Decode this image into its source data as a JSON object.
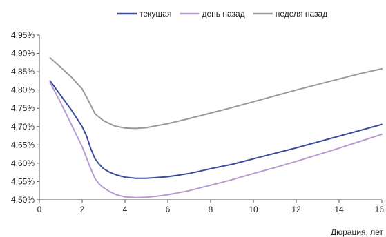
{
  "chart_data": {
    "type": "line",
    "xlabel": "Дюрация, лет",
    "ylabel": "",
    "xlim": [
      0,
      16
    ],
    "ylim": [
      4.5,
      4.95
    ],
    "x_ticks": [
      "0",
      "2",
      "4",
      "6",
      "8",
      "10",
      "12",
      "14",
      "16"
    ],
    "y_ticks": [
      "4,50%",
      "4,55%",
      "4,60%",
      "4,65%",
      "4,70%",
      "4,75%",
      "4,80%",
      "4,85%",
      "4,90%",
      "4,95%"
    ],
    "legend_position": "top-center",
    "grid": false,
    "series": [
      {
        "name": "текущая",
        "color": "#3b4d9a",
        "points": [
          [
            0.5,
            4.825
          ],
          [
            1.0,
            4.785
          ],
          [
            1.5,
            4.745
          ],
          [
            2.0,
            4.7
          ],
          [
            2.2,
            4.675
          ],
          [
            2.4,
            4.64
          ],
          [
            2.6,
            4.612
          ],
          [
            2.8,
            4.597
          ],
          [
            3.0,
            4.585
          ],
          [
            3.3,
            4.575
          ],
          [
            3.6,
            4.568
          ],
          [
            4.0,
            4.562
          ],
          [
            4.5,
            4.559
          ],
          [
            5.0,
            4.559
          ],
          [
            5.5,
            4.561
          ],
          [
            6.0,
            4.563
          ],
          [
            7.0,
            4.572
          ],
          [
            8.0,
            4.585
          ],
          [
            9.0,
            4.597
          ],
          [
            10.0,
            4.612
          ],
          [
            11.0,
            4.627
          ],
          [
            12.0,
            4.642
          ],
          [
            13.0,
            4.658
          ],
          [
            14.0,
            4.674
          ],
          [
            15.0,
            4.69
          ],
          [
            16.0,
            4.706
          ]
        ]
      },
      {
        "name": "день назад",
        "color": "#b79bd0",
        "points": [
          [
            0.5,
            4.82
          ],
          [
            1.0,
            4.765
          ],
          [
            1.5,
            4.705
          ],
          [
            2.0,
            4.645
          ],
          [
            2.2,
            4.615
          ],
          [
            2.4,
            4.585
          ],
          [
            2.6,
            4.558
          ],
          [
            2.8,
            4.543
          ],
          [
            3.0,
            4.533
          ],
          [
            3.3,
            4.522
          ],
          [
            3.6,
            4.514
          ],
          [
            4.0,
            4.508
          ],
          [
            4.5,
            4.506
          ],
          [
            5.0,
            4.507
          ],
          [
            5.5,
            4.51
          ],
          [
            6.0,
            4.514
          ],
          [
            7.0,
            4.525
          ],
          [
            8.0,
            4.54
          ],
          [
            9.0,
            4.555
          ],
          [
            10.0,
            4.572
          ],
          [
            11.0,
            4.588
          ],
          [
            12.0,
            4.605
          ],
          [
            13.0,
            4.623
          ],
          [
            14.0,
            4.641
          ],
          [
            15.0,
            4.66
          ],
          [
            16.0,
            4.679
          ]
        ]
      },
      {
        "name": "неделя назад",
        "color": "#999999",
        "points": [
          [
            0.5,
            4.888
          ],
          [
            1.0,
            4.862
          ],
          [
            1.5,
            4.835
          ],
          [
            2.0,
            4.803
          ],
          [
            2.3,
            4.77
          ],
          [
            2.6,
            4.735
          ],
          [
            3.0,
            4.716
          ],
          [
            3.5,
            4.702
          ],
          [
            4.0,
            4.696
          ],
          [
            4.5,
            4.695
          ],
          [
            5.0,
            4.697
          ],
          [
            6.0,
            4.708
          ],
          [
            7.0,
            4.722
          ],
          [
            8.0,
            4.737
          ],
          [
            9.0,
            4.752
          ],
          [
            10.0,
            4.768
          ],
          [
            11.0,
            4.784
          ],
          [
            12.0,
            4.8
          ],
          [
            13.0,
            4.815
          ],
          [
            14.0,
            4.83
          ],
          [
            15.0,
            4.845
          ],
          [
            16.0,
            4.858
          ]
        ]
      }
    ]
  }
}
